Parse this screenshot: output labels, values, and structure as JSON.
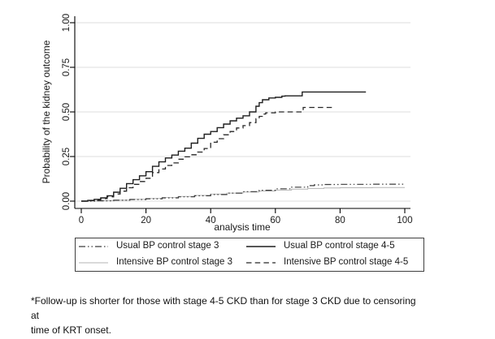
{
  "figure": {
    "footnote": "*Follow-up is shorter for those with stage 4-5 CKD than for stage 3 CKD due to censoring at\ntime of KRT onset."
  },
  "chart_data": {
    "type": "line",
    "subtype": "kaplan-meier-cumulative-incidence-steps",
    "title": "",
    "xlabel": "analysis time",
    "ylabel": "Probability of the kidney outcome",
    "xlim": [
      0,
      100
    ],
    "ylim": [
      0,
      1
    ],
    "x_ticks": [
      0,
      20,
      40,
      60,
      80,
      100
    ],
    "y_ticks": [
      0,
      0.25,
      0.5,
      0.75,
      1
    ],
    "y_tick_labels": [
      "0.00",
      "0.25",
      "0.50",
      "0.75",
      "1.00"
    ],
    "grid": "horizontal light-gray gridlines at each y tick",
    "legend_position": "bottom, boxed, 2 columns",
    "colors": {
      "axis": "#000000",
      "gridline": "#dcdcdc",
      "background": "#ffffff"
    },
    "series": [
      {
        "name": "Usual BP control stage 3",
        "line_style": "dash-dot-dot",
        "color": "#3c3c3c",
        "x": [
          0,
          5,
          10,
          15,
          20,
          25,
          30,
          35,
          40,
          45,
          50,
          55,
          60,
          65,
          70,
          72,
          75,
          80,
          90,
          100
        ],
        "y": [
          0,
          0.002,
          0.005,
          0.009,
          0.013,
          0.018,
          0.024,
          0.03,
          0.037,
          0.045,
          0.053,
          0.061,
          0.069,
          0.078,
          0.087,
          0.091,
          0.093,
          0.094,
          0.095,
          0.095
        ]
      },
      {
        "name": "Usual BP control stage 4-5",
        "line_style": "solid",
        "color": "#1f1f1f",
        "x": [
          0,
          2,
          4,
          6,
          8,
          10,
          12,
          14,
          16,
          18,
          20,
          22,
          24,
          26,
          28,
          30,
          32,
          34,
          36,
          38,
          40,
          42,
          44,
          46,
          48,
          50,
          52,
          54,
          55,
          56,
          58,
          60,
          62,
          63,
          68.3,
          88
        ],
        "y": [
          0,
          0.004,
          0.01,
          0.018,
          0.03,
          0.05,
          0.072,
          0.098,
          0.12,
          0.142,
          0.165,
          0.195,
          0.22,
          0.242,
          0.258,
          0.28,
          0.297,
          0.325,
          0.352,
          0.375,
          0.39,
          0.412,
          0.432,
          0.45,
          0.465,
          0.478,
          0.5,
          0.532,
          0.552,
          0.568,
          0.578,
          0.582,
          0.588,
          0.59,
          0.612,
          0.612
        ]
      },
      {
        "name": "Intensive BP control stage 3",
        "line_style": "thin-solid",
        "color": "#b3b3b3",
        "x": [
          0,
          5,
          10,
          15,
          20,
          25,
          30,
          35,
          40,
          45,
          50,
          55,
          60,
          65,
          70,
          75,
          80,
          90,
          100
        ],
        "y": [
          0,
          0.003,
          0.006,
          0.01,
          0.015,
          0.02,
          0.026,
          0.032,
          0.039,
          0.045,
          0.051,
          0.057,
          0.062,
          0.067,
          0.071,
          0.074,
          0.075,
          0.076,
          0.076
        ]
      },
      {
        "name": "Intensive BP control stage 4-5",
        "line_style": "dashed",
        "color": "#262626",
        "x": [
          0,
          2,
          4,
          6,
          8,
          10,
          12,
          14,
          16,
          18,
          20,
          22,
          24,
          26,
          28,
          30,
          32,
          34,
          36,
          38,
          40,
          42,
          44,
          46,
          48,
          50,
          52,
          54,
          55,
          56,
          57,
          60,
          68.6,
          78.3
        ],
        "y": [
          0,
          0.003,
          0.007,
          0.014,
          0.024,
          0.04,
          0.056,
          0.075,
          0.094,
          0.11,
          0.128,
          0.16,
          0.18,
          0.2,
          0.214,
          0.235,
          0.248,
          0.26,
          0.275,
          0.295,
          0.33,
          0.35,
          0.372,
          0.39,
          0.41,
          0.423,
          0.44,
          0.462,
          0.475,
          0.488,
          0.495,
          0.5,
          0.525,
          0.525
        ]
      }
    ]
  }
}
